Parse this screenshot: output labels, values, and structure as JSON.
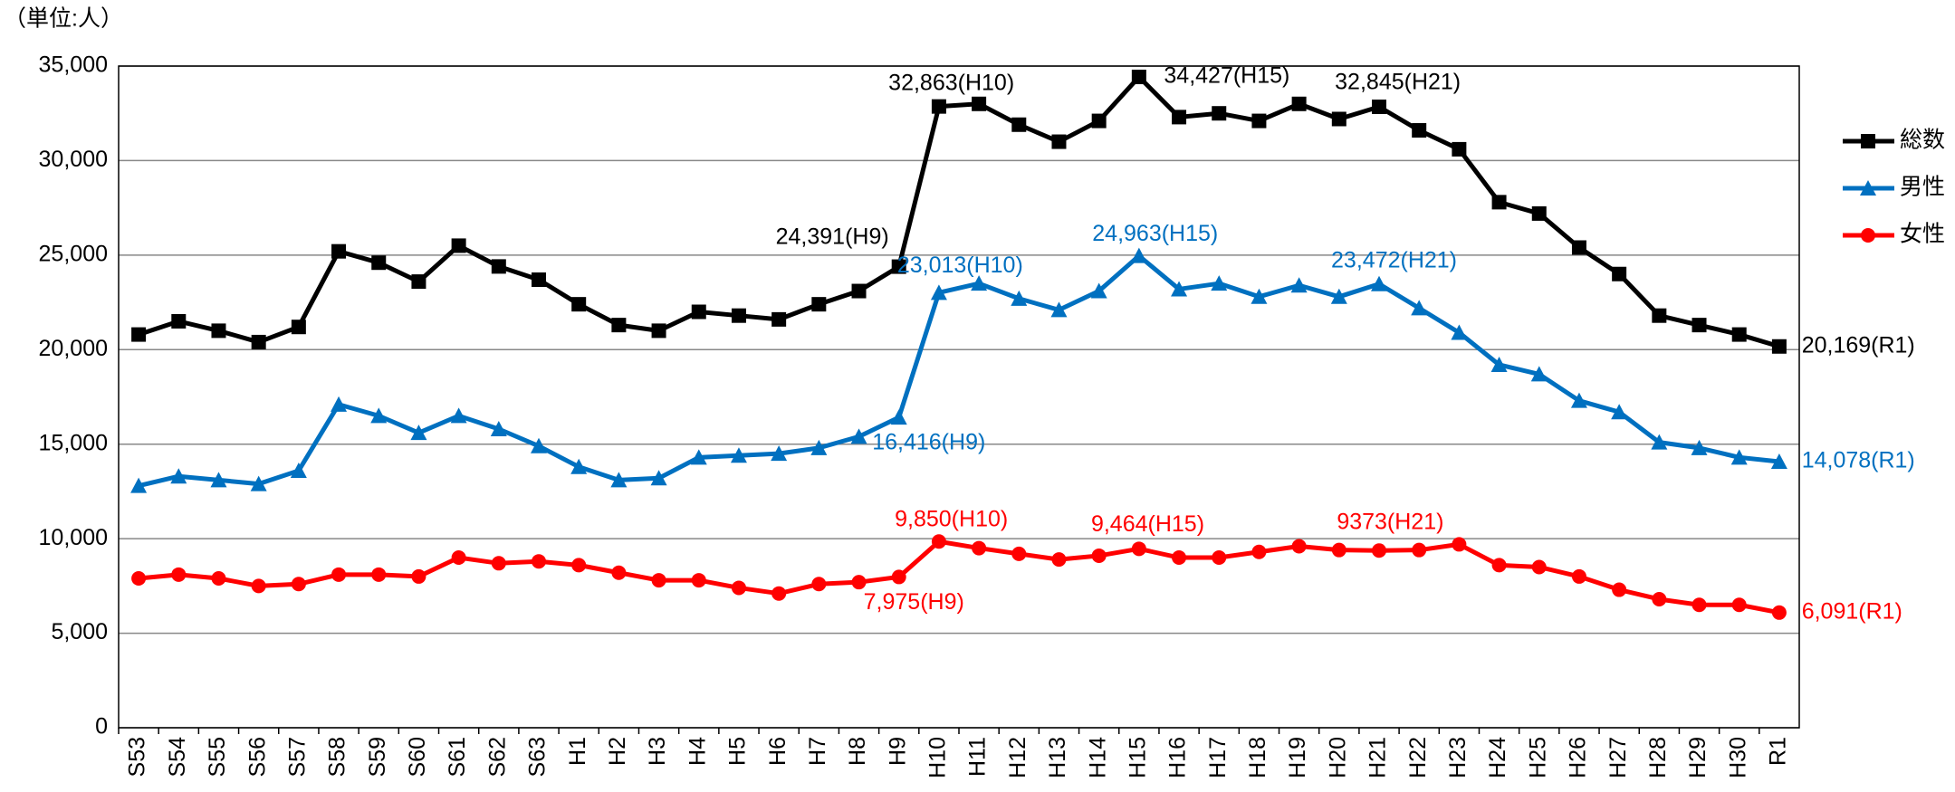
{
  "chart_data": {
    "type": "line",
    "y_label": "（単位:人）",
    "categories": [
      "S53",
      "S54",
      "S55",
      "S56",
      "S57",
      "S58",
      "S59",
      "S60",
      "S61",
      "S62",
      "S63",
      "H1",
      "H2",
      "H3",
      "H4",
      "H5",
      "H6",
      "H7",
      "H8",
      "H9",
      "H10",
      "H11",
      "H12",
      "H13",
      "H14",
      "H15",
      "H16",
      "H17",
      "H18",
      "H19",
      "H20",
      "H21",
      "H22",
      "H23",
      "H24",
      "H25",
      "H26",
      "H27",
      "H28",
      "H29",
      "H30",
      "R1"
    ],
    "series": [
      {
        "name": "総数",
        "color": "#000000",
        "marker": "square",
        "values": [
          20800,
          21500,
          21000,
          20400,
          21200,
          25200,
          24600,
          23600,
          25500,
          24400,
          23700,
          22400,
          21300,
          21000,
          22000,
          21800,
          21600,
          22400,
          23100,
          24391,
          32863,
          33000,
          31900,
          31000,
          32100,
          34427,
          32300,
          32500,
          32100,
          33000,
          32200,
          32845,
          31600,
          30600,
          27800,
          27200,
          25400,
          24000,
          21800,
          21300,
          20800,
          20169
        ],
        "value_labels": [
          null,
          null,
          null,
          null,
          null,
          null,
          null,
          null,
          null,
          null,
          null,
          null,
          null,
          null,
          null,
          null,
          null,
          null,
          null,
          "24,391(H9)",
          "32,863(H10)",
          null,
          null,
          null,
          null,
          "34,427(H15)",
          null,
          null,
          null,
          null,
          null,
          "32,845(H21)",
          null,
          null,
          null,
          null,
          null,
          null,
          null,
          null,
          null,
          "20,169(R1)"
        ]
      },
      {
        "name": "男性",
        "color": "#0070c0",
        "marker": "triangle",
        "values": [
          12800,
          13300,
          13100,
          12900,
          13600,
          17100,
          16500,
          15600,
          16500,
          15800,
          14900,
          13800,
          13100,
          13200,
          14300,
          14400,
          14500,
          14800,
          15400,
          16416,
          23013,
          23500,
          22700,
          22100,
          23100,
          24963,
          23200,
          23500,
          22800,
          23400,
          22800,
          23472,
          22200,
          20900,
          19200,
          18700,
          17300,
          16700,
          15100,
          14800,
          14300,
          14078
        ],
        "value_labels": [
          null,
          null,
          null,
          null,
          null,
          null,
          null,
          null,
          null,
          null,
          null,
          null,
          null,
          null,
          null,
          null,
          null,
          null,
          null,
          "16,416(H9)",
          "23,013(H10)",
          null,
          null,
          null,
          null,
          "24,963(H15)",
          null,
          null,
          null,
          null,
          null,
          "23,472(H21)",
          null,
          null,
          null,
          null,
          null,
          null,
          null,
          null,
          null,
          "14,078(R1)"
        ]
      },
      {
        "name": "女性",
        "color": "#ff0000",
        "marker": "circle",
        "values": [
          7900,
          8100,
          7900,
          7500,
          7600,
          8100,
          8100,
          8000,
          9000,
          8700,
          8800,
          8600,
          8200,
          7800,
          7800,
          7400,
          7100,
          7600,
          7700,
          7975,
          9850,
          9500,
          9200,
          8900,
          9100,
          9464,
          9000,
          9000,
          9300,
          9600,
          9400,
          9373,
          9400,
          9700,
          8600,
          8500,
          8000,
          7300,
          6800,
          6500,
          6500,
          6091
        ],
        "value_labels": [
          null,
          null,
          null,
          null,
          null,
          null,
          null,
          null,
          null,
          null,
          null,
          null,
          null,
          null,
          null,
          null,
          null,
          null,
          null,
          "7,975(H9)",
          "9,850(H10)",
          null,
          null,
          null,
          null,
          "9,464(H15)",
          null,
          null,
          null,
          null,
          null,
          "9373(H21)",
          null,
          null,
          null,
          null,
          null,
          null,
          null,
          null,
          null,
          "6,091(R1)"
        ]
      }
    ],
    "ylim": [
      0,
      35000
    ],
    "yticks": [
      0,
      {
        "value": 5000,
        "label": "5,000"
      },
      {
        "value": 10000,
        "label": "10,000"
      },
      {
        "value": 15000,
        "label": "15,000"
      },
      {
        "value": 20000,
        "label": "20,000"
      },
      {
        "value": 25000,
        "label": "25,000"
      },
      {
        "value": 30000,
        "label": "30,000"
      },
      {
        "value": 35000,
        "label": "35,000"
      }
    ],
    "grid": true,
    "legend": "right"
  }
}
